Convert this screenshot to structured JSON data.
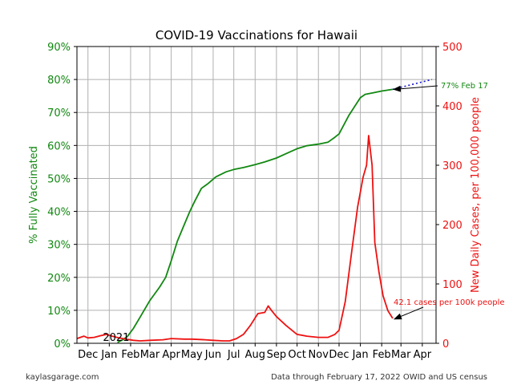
{
  "chart_data": {
    "type": "line",
    "title": "COVID-19 Vaccinations for Hawaii",
    "left_axis": {
      "label": "% Fully Vaccinated",
      "color": "#118811",
      "range": [
        0,
        90
      ],
      "ticks": [
        "0%",
        "10%",
        "20%",
        "30%",
        "40%",
        "50%",
        "60%",
        "70%",
        "80%",
        "90%"
      ]
    },
    "right_axis": {
      "label": "New Daily Cases, per 100,000 people",
      "color": "#ee1111",
      "range": [
        0,
        500
      ],
      "ticks": [
        "0",
        "100",
        "200",
        "300",
        "400",
        "500"
      ]
    },
    "x_axis": {
      "range": [
        "2020-11-15",
        "2022-04-21"
      ],
      "month_ticks": [
        {
          "date": "2020-12-01",
          "label": "Dec"
        },
        {
          "date": "2021-01-01",
          "label": "Jan"
        },
        {
          "date": "2021-02-01",
          "label": "Feb"
        },
        {
          "date": "2021-03-01",
          "label": "Mar"
        },
        {
          "date": "2021-04-01",
          "label": "Apr"
        },
        {
          "date": "2021-05-01",
          "label": "May"
        },
        {
          "date": "2021-06-01",
          "label": "Jun"
        },
        {
          "date": "2021-07-01",
          "label": "Jul"
        },
        {
          "date": "2021-08-01",
          "label": "Aug"
        },
        {
          "date": "2021-09-01",
          "label": "Sep"
        },
        {
          "date": "2021-10-01",
          "label": "Oct"
        },
        {
          "date": "2021-11-01",
          "label": "Nov"
        },
        {
          "date": "2021-12-01",
          "label": "Dec"
        },
        {
          "date": "2022-01-01",
          "label": "Jan"
        },
        {
          "date": "2022-02-01",
          "label": "Feb"
        },
        {
          "date": "2022-03-01",
          "label": "Mar"
        },
        {
          "date": "2022-04-01",
          "label": "Apr"
        }
      ],
      "year_label": {
        "date": "2021-01-01",
        "text": "2021"
      }
    },
    "grid": true,
    "series": [
      {
        "axis": "left",
        "color": "#118811",
        "points": [
          [
            "2021-01-13",
            0.3
          ],
          [
            "2021-01-20",
            1.0
          ],
          [
            "2021-01-27",
            2.0
          ],
          [
            "2021-02-05",
            4.5
          ],
          [
            "2021-02-15",
            8.0
          ],
          [
            "2021-03-01",
            13.0
          ],
          [
            "2021-03-15",
            17.0
          ],
          [
            "2021-03-24",
            20.0
          ],
          [
            "2021-04-01",
            25.0
          ],
          [
            "2021-04-10",
            31.0
          ],
          [
            "2021-04-20",
            36.0
          ],
          [
            "2021-04-28",
            40.0
          ],
          [
            "2021-05-05",
            43.0
          ],
          [
            "2021-05-15",
            47.0
          ],
          [
            "2021-05-25",
            48.5
          ],
          [
            "2021-06-05",
            50.5
          ],
          [
            "2021-06-20",
            52.0
          ],
          [
            "2021-07-01",
            52.7
          ],
          [
            "2021-07-15",
            53.3
          ],
          [
            "2021-08-01",
            54.2
          ],
          [
            "2021-08-15",
            55.0
          ],
          [
            "2021-09-01",
            56.2
          ],
          [
            "2021-09-15",
            57.5
          ],
          [
            "2021-10-01",
            59.0
          ],
          [
            "2021-10-15",
            59.9
          ],
          [
            "2021-11-01",
            60.4
          ],
          [
            "2021-11-15",
            61.0
          ],
          [
            "2021-11-25",
            62.5
          ],
          [
            "2021-12-01",
            63.5
          ],
          [
            "2021-12-15",
            69.0
          ],
          [
            "2022-01-01",
            74.5
          ],
          [
            "2022-01-08",
            75.5
          ],
          [
            "2022-01-20",
            76.0
          ],
          [
            "2022-02-01",
            76.5
          ],
          [
            "2022-02-17",
            77.0
          ]
        ]
      },
      {
        "axis": "left",
        "color": "#1111cc",
        "style": "dotted",
        "points": [
          [
            "2022-02-17",
            77.0
          ],
          [
            "2022-04-15",
            80.0
          ]
        ]
      },
      {
        "axis": "right",
        "color": "#ee1111",
        "points": [
          [
            "2020-11-15",
            8
          ],
          [
            "2020-11-25",
            12
          ],
          [
            "2020-12-01",
            9
          ],
          [
            "2020-12-10",
            10
          ],
          [
            "2020-12-20",
            13
          ],
          [
            "2020-12-28",
            15
          ],
          [
            "2021-01-05",
            12
          ],
          [
            "2021-01-15",
            9
          ],
          [
            "2021-01-25",
            7
          ],
          [
            "2021-02-05",
            5
          ],
          [
            "2021-02-15",
            4
          ],
          [
            "2021-03-01",
            5
          ],
          [
            "2021-03-20",
            6
          ],
          [
            "2021-04-01",
            8
          ],
          [
            "2021-04-20",
            7
          ],
          [
            "2021-05-01",
            7
          ],
          [
            "2021-05-20",
            6
          ],
          [
            "2021-06-01",
            5
          ],
          [
            "2021-06-15",
            4
          ],
          [
            "2021-06-25",
            4
          ],
          [
            "2021-07-05",
            8
          ],
          [
            "2021-07-15",
            15
          ],
          [
            "2021-07-25",
            30
          ],
          [
            "2021-08-05",
            50
          ],
          [
            "2021-08-15",
            52
          ],
          [
            "2021-08-20",
            63
          ],
          [
            "2021-08-25",
            55
          ],
          [
            "2021-09-01",
            45
          ],
          [
            "2021-09-15",
            30
          ],
          [
            "2021-10-01",
            15
          ],
          [
            "2021-10-15",
            12
          ],
          [
            "2021-11-01",
            10
          ],
          [
            "2021-11-15",
            10
          ],
          [
            "2021-11-25",
            15
          ],
          [
            "2021-12-01",
            22
          ],
          [
            "2021-12-10",
            70
          ],
          [
            "2021-12-20",
            160
          ],
          [
            "2021-12-28",
            230
          ],
          [
            "2022-01-05",
            280
          ],
          [
            "2022-01-10",
            300
          ],
          [
            "2022-01-13",
            350
          ],
          [
            "2022-01-18",
            300
          ],
          [
            "2022-01-22",
            170
          ],
          [
            "2022-01-28",
            120
          ],
          [
            "2022-02-03",
            80
          ],
          [
            "2022-02-10",
            55
          ],
          [
            "2022-02-17",
            42
          ]
        ]
      }
    ],
    "annotations": [
      {
        "text": "77% Feb 17",
        "color": "#118811",
        "axis": "left",
        "point": [
          "2022-02-17",
          77.0
        ]
      },
      {
        "text": "42.1 cases per 100k people",
        "color": "#ee1111",
        "axis": "right",
        "point": [
          "2022-02-17",
          42.1
        ]
      }
    ]
  },
  "footer": {
    "left": "kaylasgarage.com",
    "right": "Data through February 17, 2022 OWID and US census"
  }
}
